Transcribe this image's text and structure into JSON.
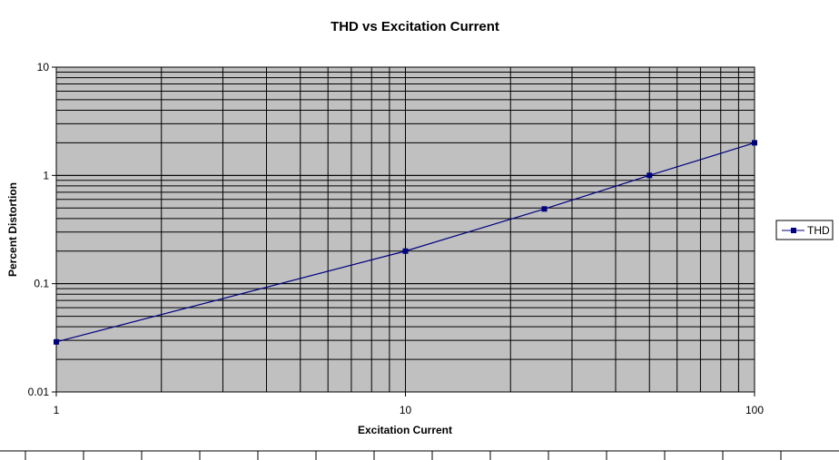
{
  "chart_data": {
    "type": "line",
    "title": "THD vs Excitation Current",
    "xlabel": "Excitation Current",
    "ylabel": "Percent Distortion",
    "xscale": "log",
    "yscale": "log",
    "xlim": [
      1,
      100
    ],
    "ylim": [
      0.01,
      10
    ],
    "x_tick_labels": [
      "1",
      "10",
      "100"
    ],
    "y_tick_labels": [
      "0.01",
      "0.1",
      "1",
      "10"
    ],
    "grid": true,
    "legend_position": "right",
    "series": [
      {
        "name": "THD",
        "color": "#000080",
        "marker": "square",
        "x": [
          1,
          10,
          25,
          50,
          100
        ],
        "y": [
          0.029,
          0.2,
          0.49,
          1.0,
          2.0
        ]
      }
    ]
  }
}
